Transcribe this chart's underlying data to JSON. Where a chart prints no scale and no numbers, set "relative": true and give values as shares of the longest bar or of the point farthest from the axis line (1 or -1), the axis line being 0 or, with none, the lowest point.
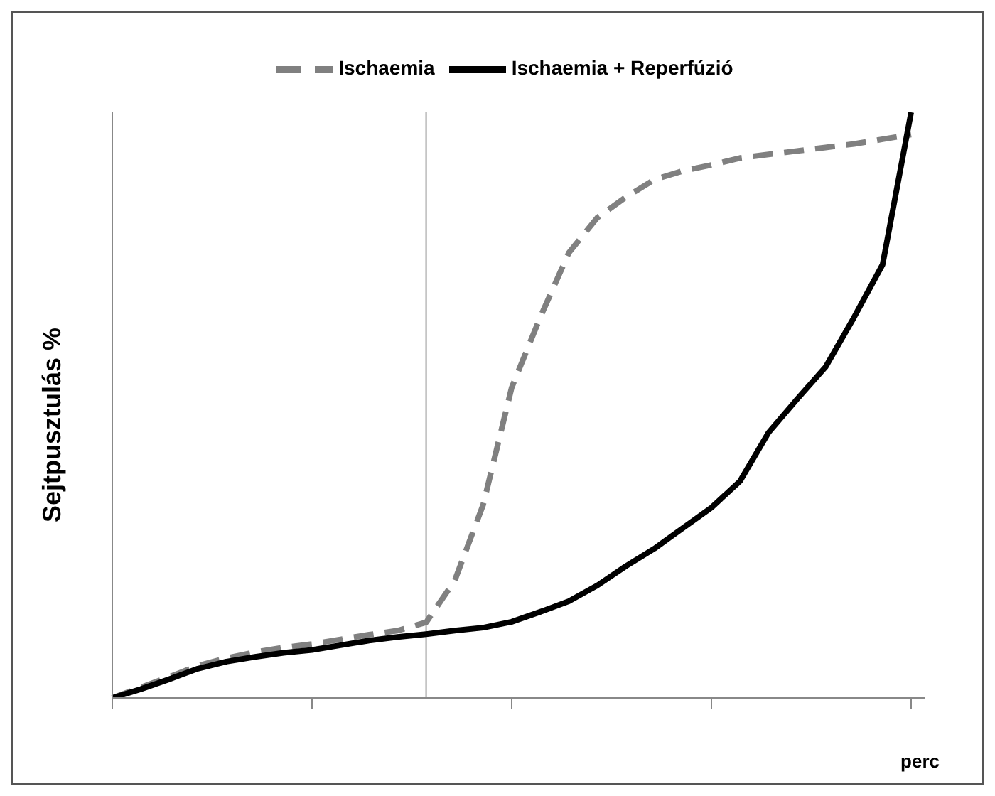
{
  "chart_data": {
    "type": "line",
    "relative": true,
    "ylabel": "Sejtpusztulás %",
    "xlabel": "perc",
    "categories": [
      null,
      null,
      null,
      null,
      null,
      null,
      null,
      null,
      null,
      null,
      null,
      null,
      null,
      null,
      null,
      null,
      null,
      null,
      null,
      null,
      null,
      null,
      null,
      null,
      null,
      null,
      null,
      null,
      null
    ],
    "grid": false,
    "legend": "top",
    "marker": "none",
    "series": [
      {
        "name": "Ischaemia",
        "color": "#808080",
        "line_style": "dashed",
        "values": [
          0,
          0.018,
          0.036,
          0.055,
          0.068,
          0.078,
          0.086,
          0.092,
          0.1,
          0.108,
          0.115,
          0.129,
          0.2,
          0.33,
          0.53,
          0.65,
          0.76,
          0.82,
          0.855,
          0.885,
          0.9,
          0.91,
          0.922,
          0.928,
          0.934,
          0.94,
          0.946,
          0.954,
          0.962
        ]
      },
      {
        "name": "Ischaemia + Reperfúzió",
        "color": "#000000",
        "line_style": "solid",
        "values": [
          0,
          0.015,
          0.032,
          0.05,
          0.062,
          0.07,
          0.077,
          0.082,
          0.09,
          0.098,
          0.104,
          0.109,
          0.115,
          0.12,
          0.13,
          0.147,
          0.165,
          0.192,
          0.225,
          0.255,
          0.29,
          0.325,
          0.37,
          0.453,
          0.51,
          0.565,
          0.65,
          0.74,
          1
        ]
      }
    ]
  }
}
